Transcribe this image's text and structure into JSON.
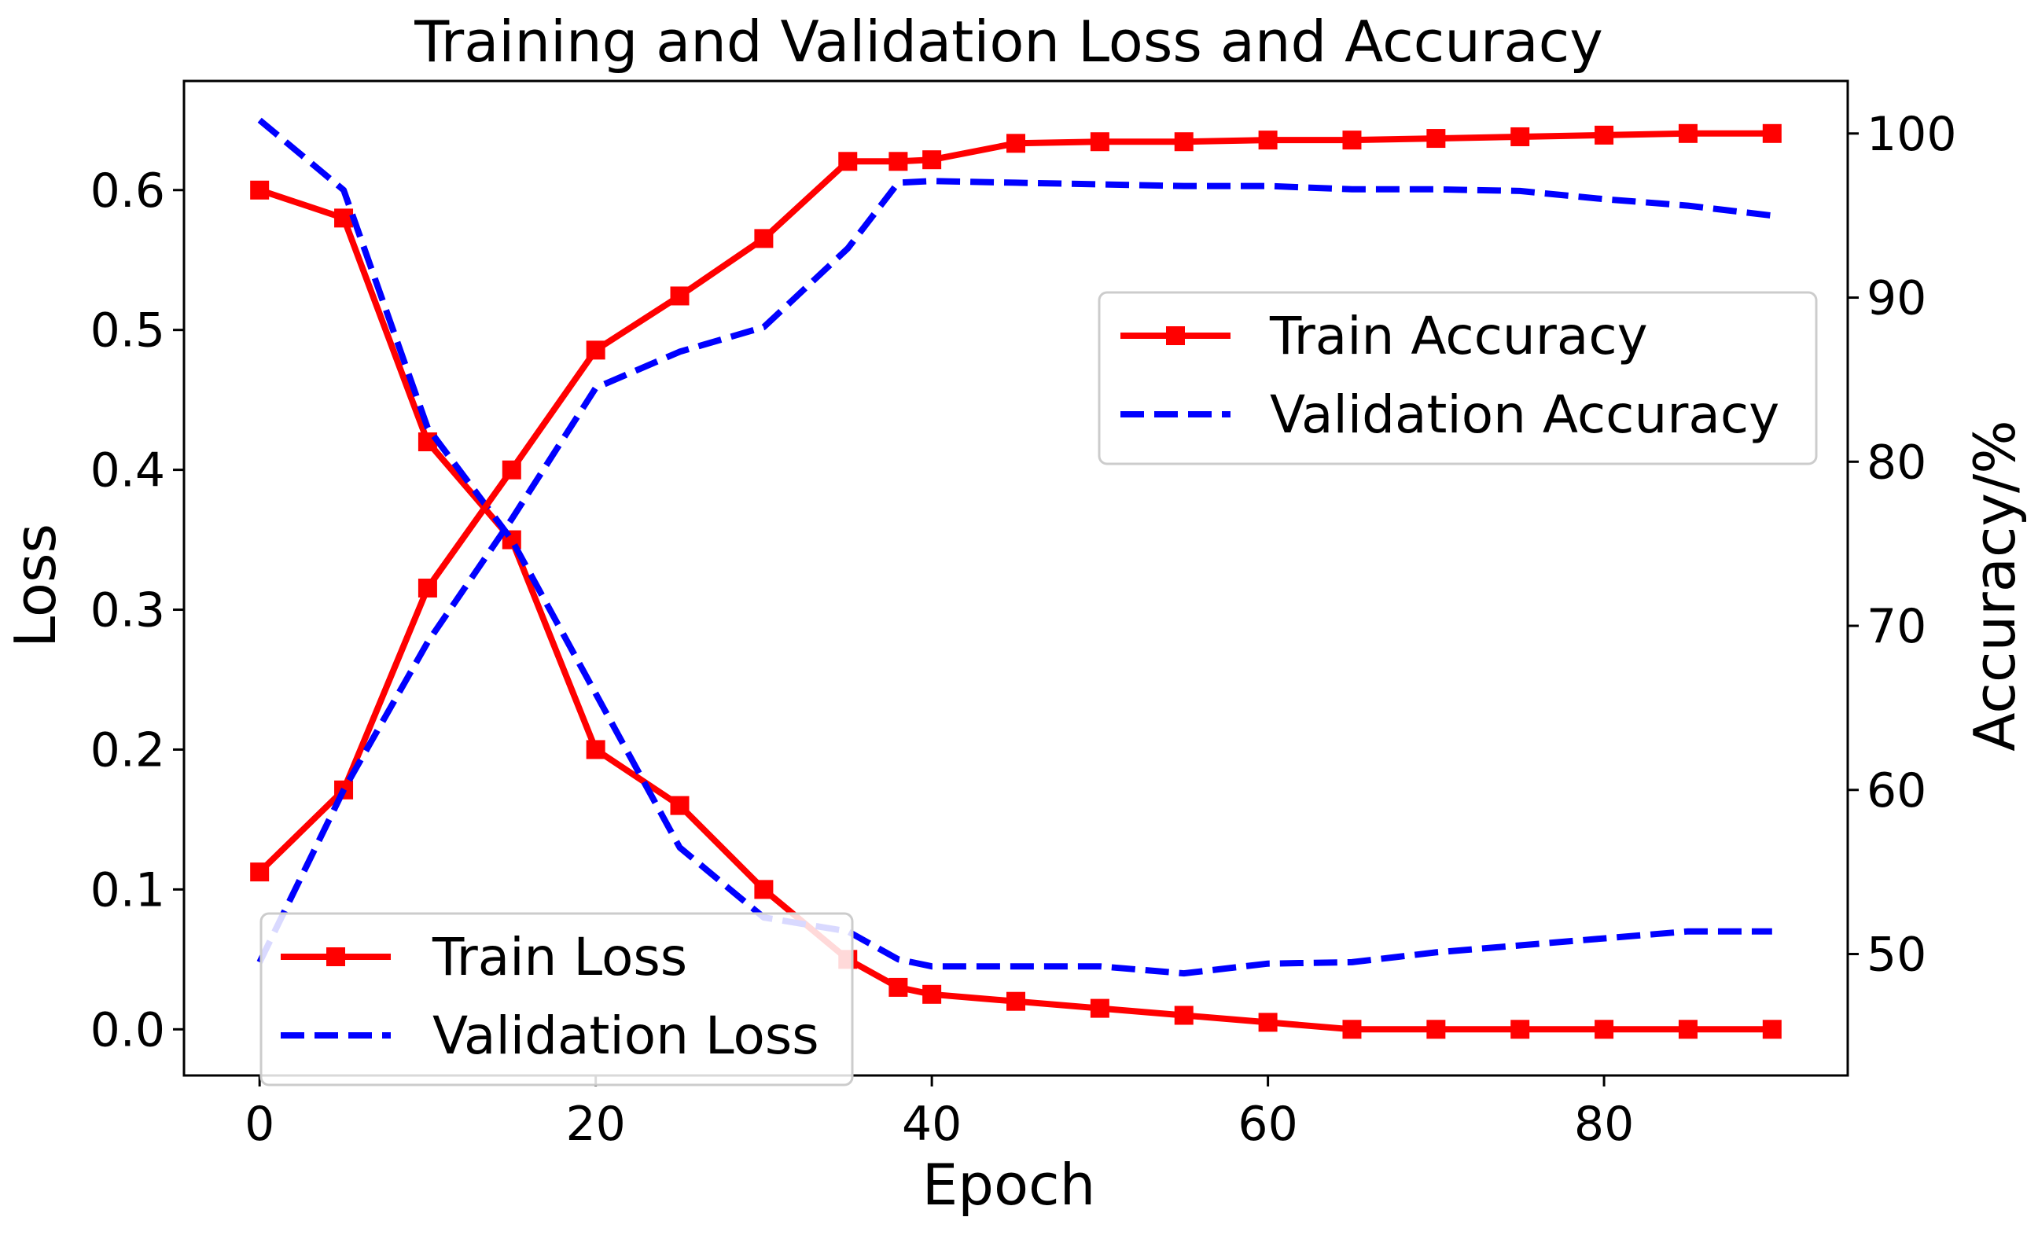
{
  "chart_data": {
    "type": "line",
    "title": "Training and Validation Loss and Accuracy",
    "xlabel": "Epoch",
    "ylabel_left": "Loss",
    "ylabel_right": "Accuracy/%",
    "xlim": [
      -4.5,
      94.5
    ],
    "ylim_left": [
      -0.033,
      0.678
    ],
    "ylim_right": [
      42.6,
      103.2
    ],
    "x_ticks": [
      0,
      20,
      40,
      60,
      80
    ],
    "x_tick_labels": [
      "0",
      "20",
      "40",
      "60",
      "80"
    ],
    "y_left_ticks": [
      0.0,
      0.1,
      0.2,
      0.3,
      0.4,
      0.5,
      0.6
    ],
    "y_left_tick_labels": [
      "0.0",
      "0.1",
      "0.2",
      "0.3",
      "0.4",
      "0.5",
      "0.6"
    ],
    "y_right_ticks": [
      50,
      60,
      70,
      80,
      90,
      100
    ],
    "y_right_tick_labels": [
      "50",
      "60",
      "70",
      "80",
      "90",
      "100"
    ],
    "grid": false,
    "legends": [
      {
        "placement": "center-right",
        "entries": [
          "Train Accuracy",
          "Validation Accuracy"
        ]
      },
      {
        "placement": "lower-left",
        "entries": [
          "Train Loss",
          "Validation Loss"
        ]
      }
    ],
    "series": [
      {
        "name": "Train Loss",
        "axis": "left",
        "color": "#ff0000",
        "style": "solid",
        "marker": "square",
        "x": [
          0,
          5,
          10,
          15,
          20,
          25,
          30,
          35,
          38,
          40,
          45,
          50,
          55,
          60,
          65,
          70,
          75,
          80,
          85,
          90
        ],
        "values": [
          0.6,
          0.58,
          0.42,
          0.35,
          0.2,
          0.16,
          0.1,
          0.05,
          0.03,
          0.025,
          0.02,
          0.015,
          0.01,
          0.005,
          0.0,
          0.0,
          0.0,
          0.0,
          0.0,
          0.0
        ]
      },
      {
        "name": "Validation Loss",
        "axis": "left",
        "color": "#0000ff",
        "style": "dashed",
        "marker": "none",
        "x": [
          0,
          5,
          10,
          15,
          20,
          25,
          30,
          35,
          38,
          40,
          45,
          50,
          55,
          60,
          65,
          70,
          75,
          80,
          85,
          90
        ],
        "values": [
          0.65,
          0.6,
          0.43,
          0.35,
          0.24,
          0.13,
          0.08,
          0.07,
          0.05,
          0.045,
          0.045,
          0.045,
          0.04,
          0.047,
          0.048,
          0.055,
          0.06,
          0.065,
          0.07,
          0.07
        ]
      },
      {
        "name": "Train Accuracy",
        "axis": "right",
        "color": "#ff0000",
        "style": "solid",
        "marker": "square",
        "x": [
          0,
          5,
          10,
          15,
          20,
          25,
          30,
          35,
          38,
          40,
          45,
          50,
          55,
          60,
          65,
          70,
          75,
          80,
          85,
          90
        ],
        "values": [
          55,
          60,
          72.3,
          79.5,
          86.8,
          90.1,
          93.6,
          98.3,
          98.3,
          98.4,
          99.4,
          99.5,
          99.5,
          99.6,
          99.6,
          99.7,
          99.8,
          99.9,
          100,
          100
        ]
      },
      {
        "name": "Validation Accuracy",
        "axis": "right",
        "color": "#0000ff",
        "style": "dashed",
        "marker": "none",
        "x": [
          0,
          5,
          10,
          15,
          20,
          25,
          30,
          35,
          38,
          40,
          45,
          50,
          55,
          60,
          65,
          70,
          75,
          80,
          85,
          90
        ],
        "values": [
          49.5,
          60,
          69,
          76.5,
          84.5,
          86.7,
          88.2,
          93,
          97,
          97.1,
          97,
          96.9,
          96.8,
          96.8,
          96.6,
          96.6,
          96.5,
          96,
          95.6,
          95
        ]
      }
    ]
  }
}
